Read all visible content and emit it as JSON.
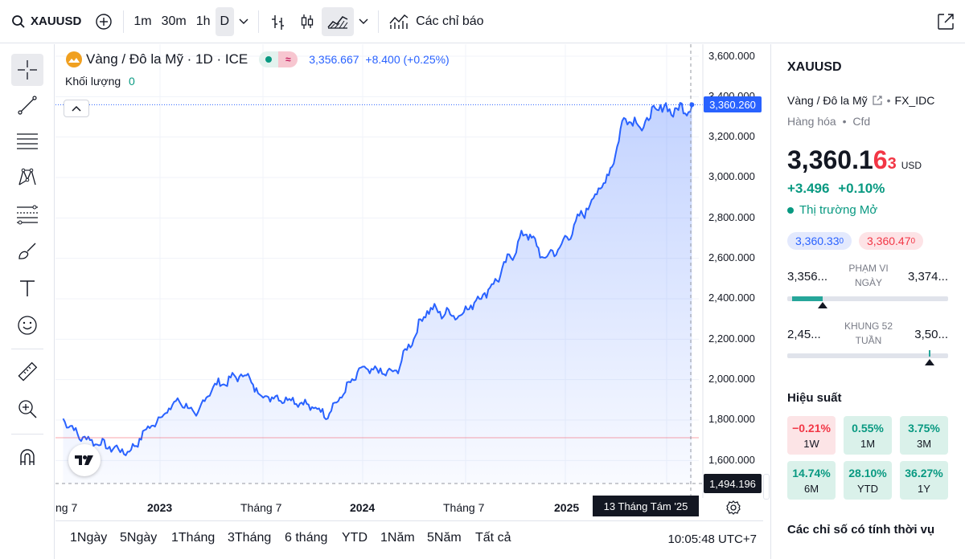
{
  "toolbar": {
    "symbol": "XAUUSD",
    "intervals": [
      "1m",
      "30m",
      "1h",
      "D"
    ],
    "indicators_label": "Các chỉ báo"
  },
  "legend": {
    "title": "Vàng / Đô la Mỹ · 1D · ICE",
    "price": "3,356.667",
    "change": "+8.400 (+0.25%)",
    "volume_label": "Khối lượng",
    "volume_value": "0"
  },
  "price_axis": {
    "ticks": [
      "3,600.000",
      "3,400.000",
      "3,200.000",
      "3,000.000",
      "2,800.000",
      "2,600.000",
      "2,400.000",
      "2,200.000",
      "2,000.000",
      "1,800.000",
      "1,600.000"
    ],
    "last_price_tag": "3,360.260",
    "crosshair_price_tag": "1,494.196"
  },
  "time_axis": {
    "labels": [
      "ng 7",
      "2023",
      "Tháng 7",
      "2024",
      "Tháng 7",
      "2025"
    ],
    "crosshair_date": "13 Tháng Tám '25"
  },
  "bottom": {
    "ranges": [
      "1Ngày",
      "5Ngày",
      "1Tháng",
      "3Tháng",
      "6 tháng",
      "YTD",
      "1Năm",
      "5Năm",
      "Tất cả"
    ],
    "clock": "10:05:48 UTC+7"
  },
  "panel": {
    "symbol": "XAUUSD",
    "description": "Vàng / Đô la Mỹ",
    "source": "FX_IDC",
    "category": "Hàng hóa",
    "type": "Cfd",
    "price_main": "3,360.1",
    "price_dec": "6",
    "price_sup": "3",
    "currency": "USD",
    "change": "+3.496",
    "change_pct": "+0.10%",
    "market_status": "Thị trường Mở",
    "bid": "3,360.33",
    "bid_sup": "0",
    "ask": "3,360.47",
    "ask_sup": "0",
    "day_range": {
      "label_1": "PHẠM VI",
      "label_2": "NGÀY",
      "low": "3,356...",
      "high": "3,374...",
      "position": 0.22
    },
    "week52_range": {
      "label_1": "KHUNG 52",
      "label_2": "TUẦN",
      "low": "2,45...",
      "high": "3,50...",
      "position": 0.88
    },
    "performance_title": "Hiệu suất",
    "performance": [
      {
        "value": "−0.21%",
        "label": "1W",
        "trend": "down"
      },
      {
        "value": "0.55%",
        "label": "1M",
        "trend": "up"
      },
      {
        "value": "3.75%",
        "label": "3M",
        "trend": "up"
      },
      {
        "value": "14.74%",
        "label": "6M",
        "trend": "up"
      },
      {
        "value": "28.10%",
        "label": "YTD",
        "trend": "up"
      },
      {
        "value": "36.27%",
        "label": "1Y",
        "trend": "up"
      }
    ],
    "seasonal_title": "Các chỉ số có tính thời vụ"
  },
  "colors": {
    "accent": "#2962ff",
    "up": "#089981",
    "down": "#f23645"
  },
  "chart_data": {
    "type": "area",
    "ylim": [
      1494,
      3600
    ],
    "x": [
      "2022-06",
      "2022-07",
      "2022-09",
      "2022-10",
      "2022-11",
      "2023-01",
      "2023-02",
      "2023-03",
      "2023-05",
      "2023-06",
      "2023-08",
      "2023-10",
      "2023-12",
      "2024-02",
      "2024-03",
      "2024-04",
      "2024-05",
      "2024-06",
      "2024-08",
      "2024-10",
      "2024-11",
      "2024-12",
      "2025-02",
      "2025-03",
      "2025-04",
      "2025-05",
      "2025-06",
      "2025-07",
      "2025-08"
    ],
    "series": [
      {
        "values": [
          1810,
          1720,
          1660,
          1640,
          1750,
          1900,
          1820,
          1960,
          2030,
          1920,
          1900,
          1830,
          2050,
          2030,
          2180,
          2350,
          2330,
          2320,
          2470,
          2740,
          2600,
          2650,
          2900,
          3010,
          3310,
          3250,
          3350,
          3330,
          3356
        ]
      }
    ]
  }
}
